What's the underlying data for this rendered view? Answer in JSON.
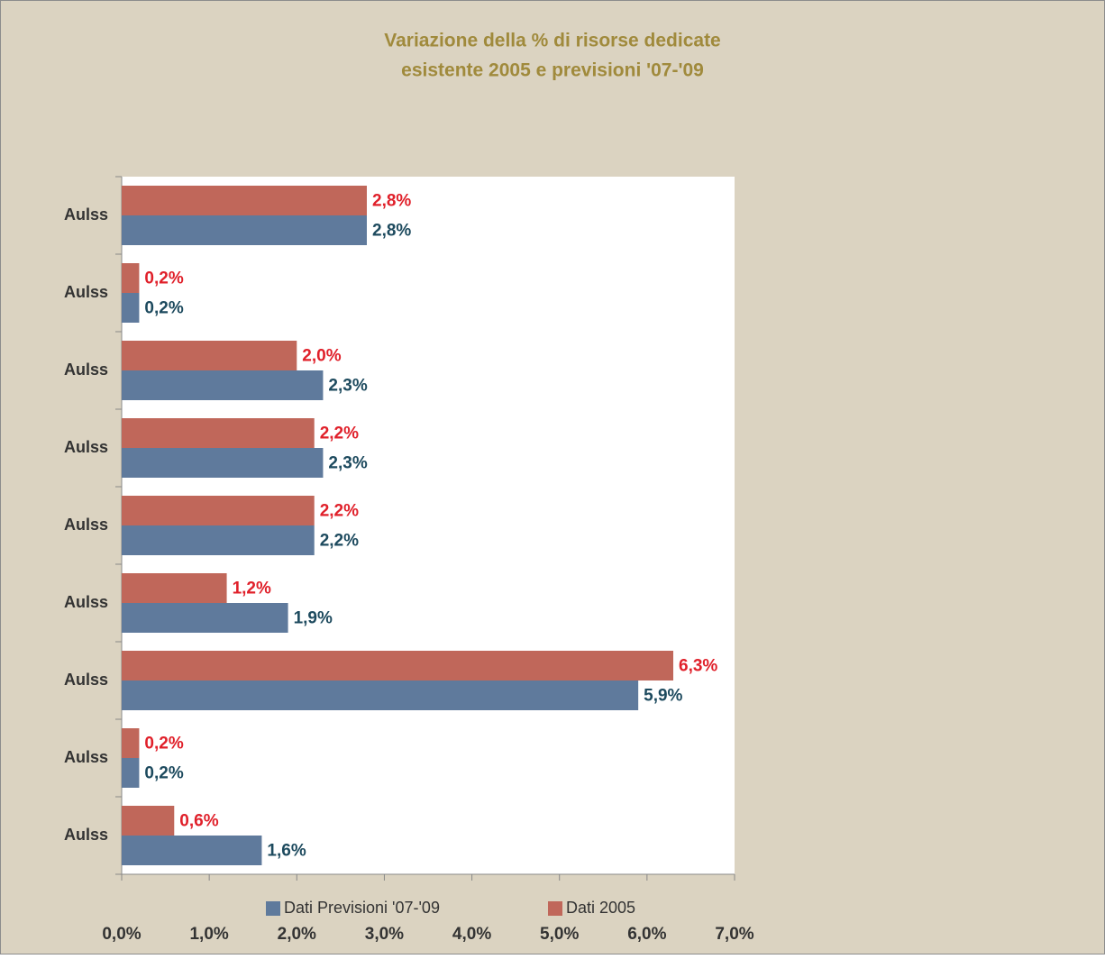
{
  "chart_data": {
    "type": "hbar",
    "title": [
      "Variazione della % di risorse dedicate",
      "esistente 2005 e previsioni '07-'09"
    ],
    "categories": [
      "Aulss",
      "Aulss",
      "Aulss",
      "Aulss",
      "Aulss",
      "Aulss",
      "Aulss",
      "Aulss",
      "Aulss"
    ],
    "series": [
      {
        "name": "Dati Previsioni '07-'09",
        "color": "#5f7a9c",
        "label_color": "#1d4a5e",
        "values": [
          2.8,
          0.2,
          2.3,
          2.3,
          2.2,
          1.9,
          5.9,
          0.2,
          1.6
        ],
        "value_labels": [
          "2,8%",
          "0,2%",
          "2,3%",
          "2,3%",
          "2,2%",
          "1,9%",
          "5,9%",
          "0,2%",
          "1,6%"
        ]
      },
      {
        "name": "Dati 2005",
        "color": "#c0675a",
        "label_color": "#e0202a",
        "values": [
          2.8,
          0.2,
          2.0,
          2.2,
          2.2,
          1.2,
          6.3,
          0.2,
          0.6
        ],
        "value_labels": [
          "2,8%",
          "0,2%",
          "2,0%",
          "2,2%",
          "2,2%",
          "1,2%",
          "6,3%",
          "0,2%",
          "0,6%"
        ]
      }
    ],
    "xlim": [
      0,
      7
    ],
    "xticks": [
      {
        "value": 0,
        "label": "0,0%"
      },
      {
        "value": 1,
        "label": "1,0%"
      },
      {
        "value": 2,
        "label": "2,0%"
      },
      {
        "value": 3,
        "label": "3,0%"
      },
      {
        "value": 4,
        "label": "4,0%"
      },
      {
        "value": 5,
        "label": "5,0%"
      },
      {
        "value": 6,
        "label": "6,0%"
      },
      {
        "value": 7,
        "label": "7,0%"
      }
    ],
    "legend": "bottom"
  }
}
